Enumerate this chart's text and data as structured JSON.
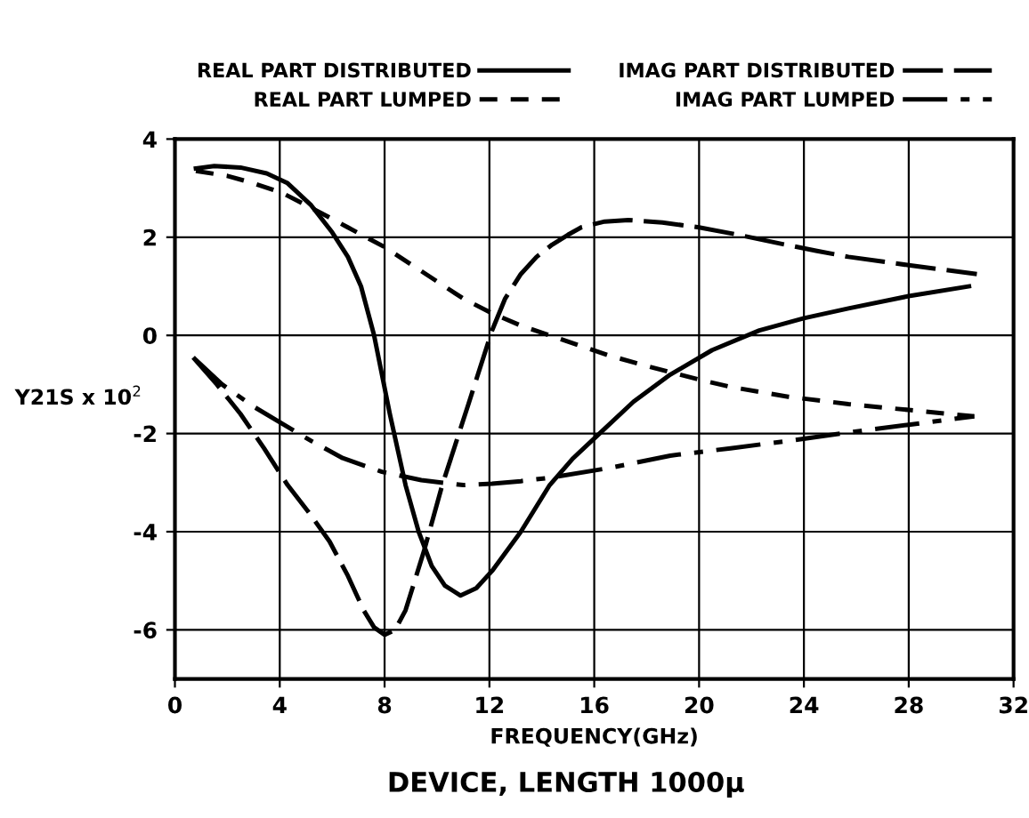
{
  "chart_data": {
    "type": "line",
    "title": "DEVICE, LENGTH 1000μ",
    "xlabel": "FREQUENCY(GHz)",
    "ylabel": "Y21S x 10$^{2}$",
    "xlim": [
      0,
      32
    ],
    "xticks": [
      0,
      4,
      8,
      12,
      16,
      20,
      24,
      28,
      32
    ],
    "ylim": [
      -7,
      4
    ],
    "yticks": [
      -6,
      -4,
      -2,
      0,
      2,
      4
    ],
    "grid": true,
    "legend": "top",
    "marker": "none",
    "series": [
      {
        "name": "REAL PART DISTRIBUTED",
        "color": "#000000",
        "line_style": "solid",
        "x": [
          0.8,
          1.5,
          2.5,
          3.5,
          4.3,
          5.2,
          6.0,
          6.6,
          7.1,
          7.6,
          8.2,
          8.8,
          9.3,
          9.8,
          10.3,
          10.9,
          11.5,
          12.1,
          13.2,
          14.3,
          15.2,
          16.2,
          17.5,
          18.9,
          20.5,
          22.3,
          24.0,
          25.7,
          28.0,
          30.3
        ],
        "values": [
          3.4,
          3.45,
          3.42,
          3.3,
          3.1,
          2.65,
          2.1,
          1.6,
          1.0,
          0,
          -1.6,
          -3.05,
          -4.0,
          -4.7,
          -5.1,
          -5.3,
          -5.15,
          -4.8,
          -4.0,
          -3.05,
          -2.5,
          -2.0,
          -1.35,
          -0.8,
          -0.3,
          0.1,
          0.35,
          0.55,
          0.8,
          1.0
        ]
      },
      {
        "name": "REAL PART LUMPED",
        "color": "#000000",
        "line_style": "dashed",
        "x": [
          0.8,
          2.0,
          3.0,
          4.1,
          5.2,
          6.6,
          8.0,
          9.0,
          10.0,
          11.0,
          12.1,
          13.2,
          14.3,
          15.4,
          16.5,
          17.7,
          18.9,
          20.0,
          21.2,
          22.3,
          23.4,
          25.7,
          28.0,
          30.5
        ],
        "values": [
          3.35,
          3.25,
          3.1,
          2.9,
          2.6,
          2.2,
          1.8,
          1.45,
          1.1,
          0.75,
          0.45,
          0.2,
          0,
          -0.2,
          -0.4,
          -0.58,
          -0.75,
          -0.9,
          -1.05,
          -1.15,
          -1.25,
          -1.4,
          -1.52,
          -1.65
        ]
      },
      {
        "name": "IMAG PART DISTRIBUTED",
        "color": "#000000",
        "line_style": "longdash",
        "x": [
          0.7,
          1.6,
          2.5,
          3.4,
          4.3,
          5.1,
          5.9,
          6.6,
          7.2,
          7.6,
          8.0,
          8.4,
          8.8,
          9.5,
          10.2,
          11.2,
          12.1,
          12.6,
          13.2,
          13.8,
          14.4,
          15.0,
          15.5,
          16.4,
          17.3,
          18.6,
          20.0,
          21.5,
          23.0,
          24.5,
          25.7,
          28.0,
          30.6
        ],
        "values": [
          -0.45,
          -1.0,
          -1.6,
          -2.3,
          -3.05,
          -3.6,
          -4.2,
          -4.9,
          -5.6,
          -5.95,
          -6.1,
          -6.0,
          -5.6,
          -4.4,
          -3.05,
          -1.4,
          0.1,
          0.75,
          1.25,
          1.6,
          1.85,
          2.05,
          2.2,
          2.32,
          2.35,
          2.3,
          2.2,
          2.05,
          1.88,
          1.72,
          1.6,
          1.43,
          1.25
        ]
      },
      {
        "name": "IMAG PART LUMPED",
        "color": "#000000",
        "line_style": "dashdot",
        "x": [
          0.7,
          1.8,
          3.0,
          4.1,
          5.2,
          6.4,
          7.9,
          9.4,
          11.0,
          12.1,
          13.2,
          14.3,
          16.6,
          18.9,
          21.2,
          23.4,
          25.7,
          28.0,
          30.5
        ],
        "values": [
          -0.45,
          -1.0,
          -1.45,
          -1.8,
          -2.15,
          -2.5,
          -2.78,
          -2.95,
          -3.05,
          -3.02,
          -2.97,
          -2.9,
          -2.7,
          -2.45,
          -2.3,
          -2.15,
          -1.98,
          -1.82,
          -1.65
        ]
      }
    ]
  }
}
